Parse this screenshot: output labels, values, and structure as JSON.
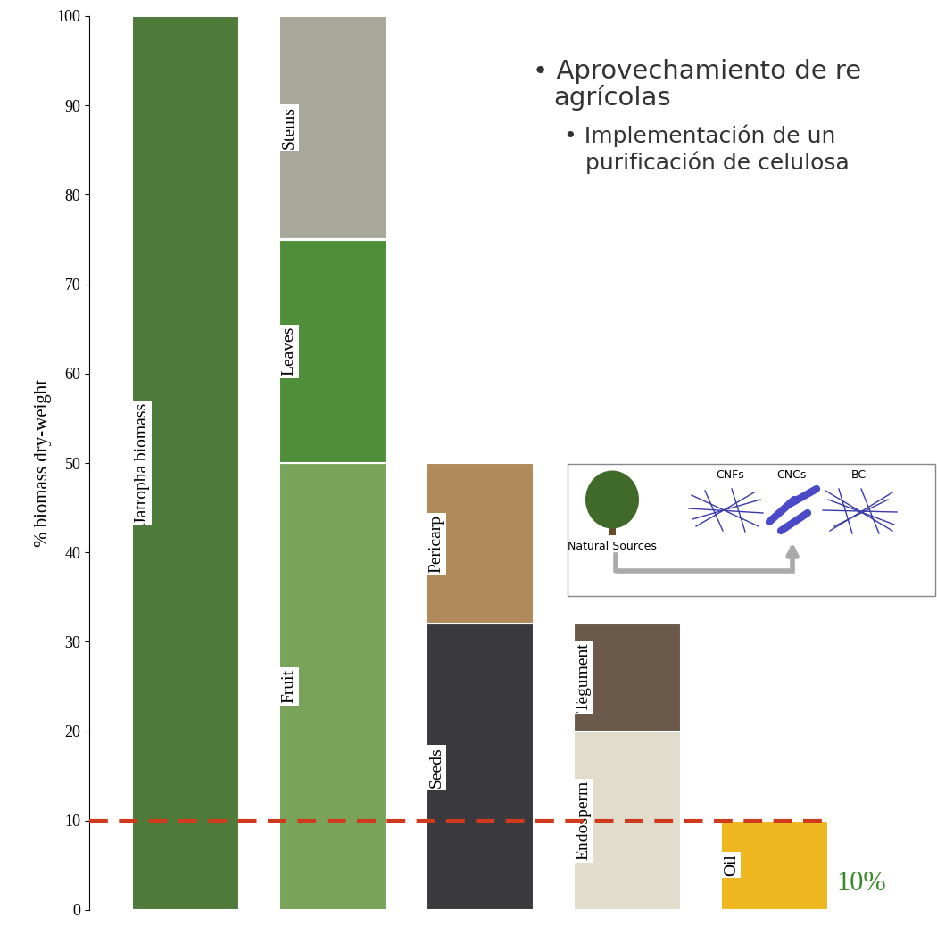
{
  "chart_data": {
    "type": "bar",
    "stacked": true,
    "ylabel": "% biomass dry-weight",
    "ylim": [
      0,
      100
    ],
    "yticks": [
      0,
      10,
      20,
      30,
      40,
      50,
      60,
      70,
      80,
      90,
      100
    ],
    "tick_labels": "y",
    "columns": [
      [
        {
          "name": "Jatropha biomass",
          "value": 100,
          "color": "#4e7a3a"
        }
      ],
      [
        {
          "name": "Fruit",
          "value": 50,
          "color": "#7aa35a"
        },
        {
          "name": "Leaves",
          "value": 25,
          "color": "#4f8f3a"
        },
        {
          "name": "Stems",
          "value": 25,
          "color": "#a8a89a"
        }
      ],
      [
        {
          "name": "Seeds",
          "value": 32,
          "color": "#3a3a3e"
        },
        {
          "name": "Pericarp",
          "value": 18,
          "color": "#b08a5a"
        }
      ],
      [
        {
          "name": "Endosperm",
          "value": 20,
          "color": "#e2dccc"
        },
        {
          "name": "Tegument",
          "value": 12,
          "color": "#6b5a4a"
        }
      ],
      [
        {
          "name": "Oil",
          "value": 10,
          "color": "#f0b820"
        }
      ]
    ],
    "reference_line": {
      "value": 10,
      "label": "10%",
      "color": "#d03a1c",
      "line_style": "dashed"
    }
  },
  "slide": {
    "bullets": [
      {
        "text": "• Aprovechamiento de re",
        "level": 1
      },
      {
        "text": "agrícolas",
        "level": 1
      },
      {
        "text": "• Implementación de un",
        "level": 2
      },
      {
        "text": "purificación de celulosa",
        "level": 2
      }
    ],
    "diagram": {
      "source": "Natural Sources",
      "labels": [
        "CNFs",
        "CNCs",
        "BC"
      ]
    }
  }
}
